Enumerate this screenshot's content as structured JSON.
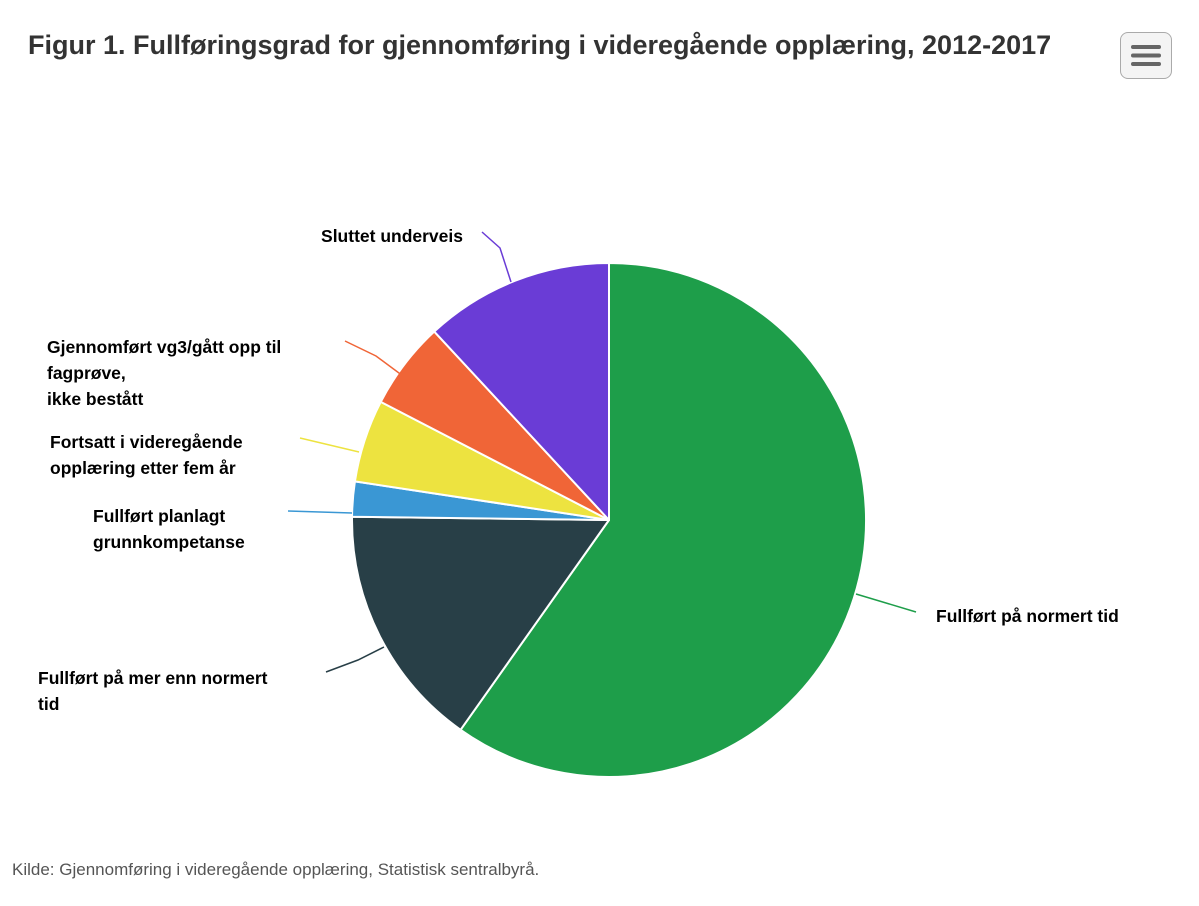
{
  "title": "Figur 1. Fullføringsgrad for gjennomføring i videregående opplæring, 2012-2017",
  "menu": {
    "icon": "hamburger-menu-icon"
  },
  "credit": "Kilde: Gjennomføring i videregående opplæring, Statistisk sentralbyrå.",
  "chart_data": {
    "type": "pie",
    "title": "Figur 1. Fullføringsgrad for gjennomføring i videregående opplæring, 2012-2017",
    "slices": [
      {
        "name": "Fullført på normert tid",
        "label_lines": [
          "Fullført på normert tid"
        ],
        "value": 59.8,
        "color": "#1e9e4a"
      },
      {
        "name": "Fullført på mer enn normert tid",
        "label_lines": [
          "Fullført på mer enn normert",
          "tid"
        ],
        "value": 15.4,
        "color": "#283f47"
      },
      {
        "name": "Fullført planlagt grunnkompetanse",
        "label_lines": [
          "Fullført planlagt",
          "grunnkompetanse"
        ],
        "value": 2.2,
        "color": "#3a97d4"
      },
      {
        "name": "Fortsatt i videregående opplæring etter fem år",
        "label_lines": [
          "Fortsatt i videregående",
          "opplæring etter fem år"
        ],
        "value": 5.2,
        "color": "#ede340"
      },
      {
        "name": "Gjennomført vg3/gått opp til fagprøve, ikke bestått",
        "label_lines": [
          "Gjennomført vg3/gått opp til",
          "fagprøve,",
          "ikke bestått"
        ],
        "value": 5.5,
        "color": "#f06537"
      },
      {
        "name": "Sluttet underveis",
        "label_lines": [
          "Sluttet underveis"
        ],
        "value": 11.9,
        "color": "#6a3cd6"
      }
    ],
    "start_angle_deg": 0,
    "direction": "clockwise"
  }
}
